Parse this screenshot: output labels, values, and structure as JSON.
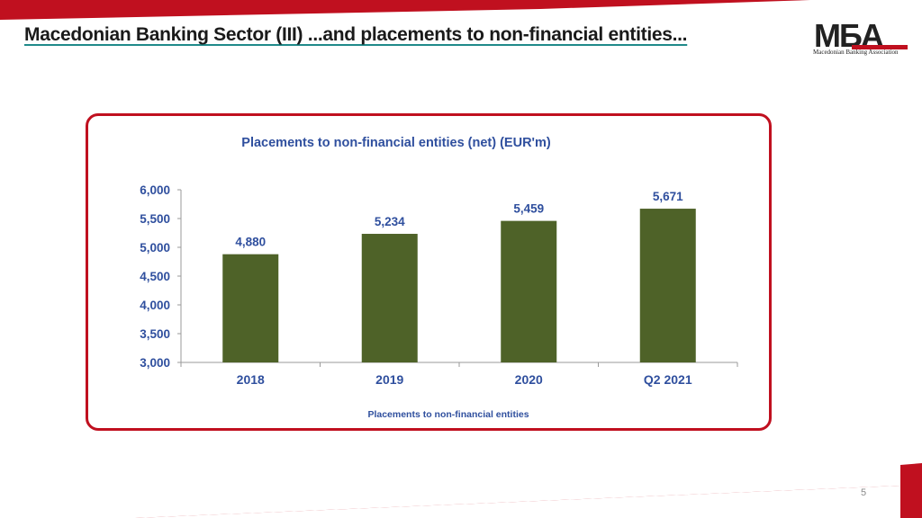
{
  "slide": {
    "title": "Macedonian Banking Sector (III) ...and placements to non-financial entities...",
    "logo_text": "MБA",
    "logo_caption": "Macedonian Banking Association",
    "page_number": "5"
  },
  "colors": {
    "accent_red": "#c0101f",
    "bar_green": "#4e6228",
    "title_blue": "#2f4f9e",
    "underline_teal": "#1f8a8a"
  },
  "chart_data": {
    "type": "bar",
    "title": "Placements to non-financial entities (net) (EUR'm)",
    "categories": [
      "2018",
      "2019",
      "2020",
      "Q2 2021"
    ],
    "series": [
      {
        "name": "Placements to non-financial entities",
        "values": [
          4880,
          5234,
          5459,
          5671
        ]
      }
    ],
    "data_labels": [
      "4,880",
      "5,234",
      "5,459",
      "5,671"
    ],
    "y_ticks": [
      "3,000",
      "3,500",
      "4,000",
      "4,500",
      "5,000",
      "5,500",
      "6,000"
    ],
    "ylim": [
      3000,
      6000
    ],
    "xlabel": "",
    "ylabel": "",
    "grid": false,
    "legend": "bottom"
  }
}
